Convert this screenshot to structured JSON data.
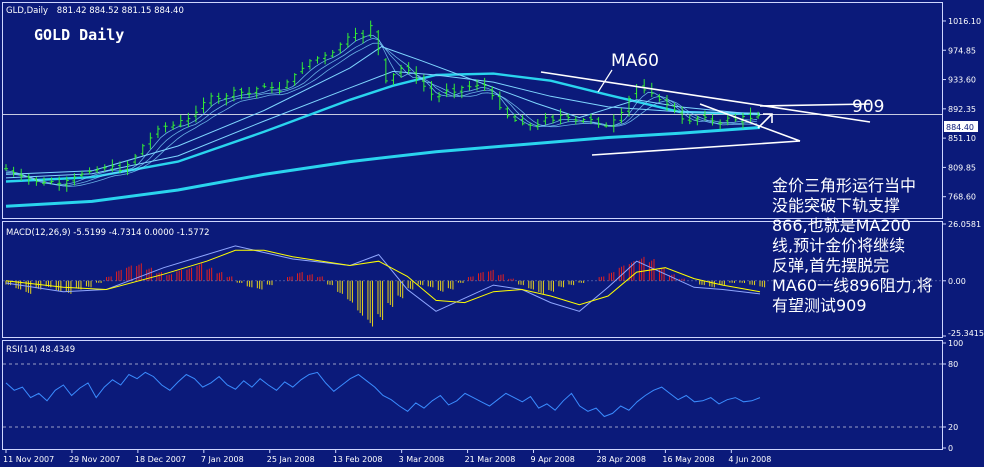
{
  "header": {
    "ticker": "GLD,Daily",
    "ohlc": "881.42 884.52 881.15 884.40",
    "big_title": "GOLD Daily",
    "annotation_ma60": "MA60",
    "annotation_909": "909"
  },
  "commentary": [
    "金价三角形运行当中",
    "没能突破下轨支撑",
    "866,也就是MA200",
    "线,预计金价将继续",
    "反弹,首先摆脱完",
    "MA60一线896阻力,将",
    "有望测试909"
  ],
  "colors": {
    "background": "#0b1a7a",
    "candles": "#33ee33",
    "ma_thin": "#7fd6ff",
    "ma_thick": "#2ad4ee",
    "macd_pos": "#e32020",
    "macd_neg": "#e6d21e",
    "signal": "#ffff00",
    "rsi": "#3a8cff",
    "text": "#ffffff"
  },
  "chart_data": [
    {
      "type": "candlestick",
      "panel": "price",
      "title": "GLD,Daily",
      "ohlc_label": "881.42 884.52 881.15 884.40",
      "last_price": "884.40",
      "ylim": [
        740,
        1040
      ],
      "y_ticks": [
        "1016.10",
        "974.85",
        "933.60",
        "892.35",
        "851.10",
        "809.85",
        "768.60"
      ],
      "x_ticks": [
        "11 Nov 2007",
        "29 Nov 2007",
        "18 Dec 2007",
        "7 Jan 2008",
        "25 Jan 2008",
        "13 Feb 2008",
        "3 Mar 2008",
        "21 Mar 2008",
        "9 Apr 2008",
        "28 Apr 2008",
        "16 May 2008",
        "4 Jun 2008"
      ],
      "close_path": [
        [
          0,
          808
        ],
        [
          8,
          800
        ],
        [
          18,
          792
        ],
        [
          24,
          788
        ],
        [
          32,
          790
        ],
        [
          38,
          787
        ],
        [
          46,
          795
        ],
        [
          52,
          800
        ],
        [
          60,
          805
        ],
        [
          66,
          808
        ],
        [
          74,
          812
        ],
        [
          80,
          805
        ],
        [
          88,
          820
        ],
        [
          96,
          842
        ],
        [
          104,
          858
        ],
        [
          108,
          870
        ],
        [
          114,
          866
        ],
        [
          122,
          876
        ],
        [
          130,
          880
        ],
        [
          136,
          898
        ],
        [
          144,
          912
        ],
        [
          150,
          905
        ],
        [
          160,
          920
        ],
        [
          168,
          912
        ],
        [
          176,
          922
        ],
        [
          184,
          925
        ],
        [
          190,
          915
        ],
        [
          198,
          935
        ],
        [
          206,
          948
        ],
        [
          212,
          960
        ],
        [
          220,
          966
        ],
        [
          228,
          972
        ],
        [
          234,
          985
        ],
        [
          242,
          1000
        ],
        [
          250,
          993
        ],
        [
          254,
          1012
        ],
        [
          260,
          975
        ],
        [
          264,
          930
        ],
        [
          270,
          940
        ],
        [
          276,
          950
        ],
        [
          282,
          946
        ],
        [
          288,
          930
        ],
        [
          294,
          920
        ],
        [
          300,
          905
        ],
        [
          306,
          920
        ],
        [
          312,
          915
        ],
        [
          320,
          925
        ],
        [
          326,
          922
        ],
        [
          332,
          930
        ],
        [
          338,
          915
        ],
        [
          344,
          895
        ],
        [
          350,
          882
        ],
        [
          356,
          875
        ],
        [
          362,
          870
        ],
        [
          370,
          868
        ],
        [
          376,
          880
        ],
        [
          382,
          876
        ],
        [
          388,
          885
        ],
        [
          394,
          878
        ],
        [
          400,
          875
        ],
        [
          406,
          880
        ],
        [
          412,
          872
        ],
        [
          418,
          867
        ],
        [
          426,
          880
        ],
        [
          432,
          893
        ],
        [
          438,
          925
        ],
        [
          444,
          920
        ],
        [
          450,
          915
        ],
        [
          456,
          905
        ],
        [
          462,
          898
        ],
        [
          468,
          888
        ],
        [
          474,
          872
        ],
        [
          480,
          878
        ],
        [
          486,
          882
        ],
        [
          492,
          876
        ],
        [
          498,
          872
        ],
        [
          504,
          880
        ],
        [
          510,
          876
        ],
        [
          516,
          884
        ],
        [
          520,
          878
        ],
        [
          526,
          884
        ]
      ],
      "series": [
        {
          "name": "MA200",
          "points": [
            [
              0,
              755
            ],
            [
              60,
              762
            ],
            [
              120,
              778
            ],
            [
              180,
              800
            ],
            [
              240,
              818
            ],
            [
              300,
              832
            ],
            [
              360,
              842
            ],
            [
              420,
              852
            ],
            [
              470,
              858
            ],
            [
              526,
              866
            ]
          ]
        },
        {
          "name": "MA60",
          "points": [
            [
              0,
              790
            ],
            [
              60,
              796
            ],
            [
              120,
              818
            ],
            [
              180,
              860
            ],
            [
              240,
              905
            ],
            [
              270,
              925
            ],
            [
              300,
              940
            ],
            [
              340,
              942
            ],
            [
              380,
              932
            ],
            [
              420,
              912
            ],
            [
              470,
              888
            ],
            [
              526,
              885
            ]
          ]
        },
        {
          "name": "MA40",
          "points": [
            [
              0,
              795
            ],
            [
              60,
              801
            ],
            [
              120,
              826
            ],
            [
              180,
              875
            ],
            [
              240,
              922
            ],
            [
              270,
              945
            ],
            [
              300,
              940
            ],
            [
              340,
              930
            ],
            [
              380,
              910
            ],
            [
              420,
              895
            ],
            [
              470,
              888
            ],
            [
              526,
              886
            ]
          ]
        },
        {
          "name": "MA20",
          "points": [
            [
              0,
              800
            ],
            [
              60,
              805
            ],
            [
              120,
              840
            ],
            [
              180,
              890
            ],
            [
              240,
              950
            ],
            [
              262,
              980
            ],
            [
              290,
              960
            ],
            [
              330,
              930
            ],
            [
              370,
              900
            ],
            [
              400,
              880
            ],
            [
              440,
              905
            ],
            [
              470,
              895
            ],
            [
              526,
              884
            ]
          ]
        }
      ],
      "trendlines": [
        {
          "label": "MA60",
          "from": [
            380,
            946
          ],
          "to": [
            620,
            902
          ]
        },
        {
          "label": "lower",
          "from": [
            420,
            854
          ],
          "to": [
            560,
            866
          ]
        },
        {
          "label": "909",
          "from": [
            560,
            902
          ],
          "to": [
            620,
            886
          ]
        }
      ]
    },
    {
      "type": "bar",
      "panel": "macd",
      "title": "MACD(12,26,9) -5.5199 -4.7314 0.0000 -1.5772",
      "ylim": [
        -25.3415,
        26.0581
      ],
      "y_ticks": [
        "26.0581",
        "0.00",
        "-25.3415"
      ],
      "histogram": [
        -2,
        -4,
        -6,
        -4,
        -3,
        -5,
        -6,
        -4,
        -3,
        -1,
        2,
        5,
        7,
        8,
        6,
        4,
        3,
        5,
        6,
        8,
        6,
        4,
        2,
        -1,
        -3,
        -4,
        -2,
        0,
        2,
        4,
        3,
        2,
        -2,
        -6,
        -10,
        -16,
        -21,
        -18,
        -12,
        -8,
        -4,
        -2,
        -3,
        -5,
        -4,
        -1,
        2,
        4,
        5,
        3,
        1,
        -2,
        -4,
        -6,
        -5,
        -3,
        -2,
        -1,
        0,
        2,
        4,
        7,
        9,
        11,
        10,
        6,
        3,
        1,
        0,
        -2,
        -3,
        -2,
        -1,
        -1,
        -2,
        -3
      ],
      "series": [
        {
          "name": "MACD",
          "points": [
            [
              0,
              -1
            ],
            [
              40,
              -5
            ],
            [
              70,
              -4
            ],
            [
              110,
              6
            ],
            [
              140,
              12
            ],
            [
              160,
              16
            ],
            [
              180,
              13
            ],
            [
              200,
              10
            ],
            [
              240,
              7
            ],
            [
              260,
              12
            ],
            [
              280,
              -4
            ],
            [
              300,
              -14
            ],
            [
              320,
              -8
            ],
            [
              340,
              -2
            ],
            [
              360,
              -4
            ],
            [
              380,
              -10
            ],
            [
              400,
              -14
            ],
            [
              420,
              -3
            ],
            [
              440,
              9
            ],
            [
              460,
              3
            ],
            [
              480,
              -3
            ],
            [
              500,
              -4
            ],
            [
              526,
              -6
            ]
          ]
        },
        {
          "name": "Signal",
          "points": [
            [
              0,
              0
            ],
            [
              40,
              -3
            ],
            [
              70,
              -4
            ],
            [
              110,
              3
            ],
            [
              140,
              9
            ],
            [
              160,
              14
            ],
            [
              180,
              14
            ],
            [
              200,
              11
            ],
            [
              240,
              7
            ],
            [
              260,
              9
            ],
            [
              280,
              2
            ],
            [
              300,
              -9
            ],
            [
              320,
              -10
            ],
            [
              340,
              -5
            ],
            [
              360,
              -4
            ],
            [
              380,
              -7
            ],
            [
              400,
              -11
            ],
            [
              420,
              -7
            ],
            [
              440,
              4
            ],
            [
              460,
              6
            ],
            [
              480,
              1
            ],
            [
              500,
              -2
            ],
            [
              526,
              -5
            ]
          ]
        }
      ]
    },
    {
      "type": "line",
      "panel": "rsi",
      "title": "RSI(14) 48.4349",
      "ylim": [
        0,
        100
      ],
      "y_ticks": [
        "100",
        "80",
        "20",
        "0"
      ],
      "values": [
        62,
        55,
        58,
        48,
        52,
        45,
        55,
        60,
        50,
        57,
        62,
        48,
        58,
        65,
        60,
        70,
        66,
        72,
        68,
        60,
        55,
        63,
        70,
        66,
        58,
        62,
        68,
        60,
        56,
        64,
        58,
        66,
        60,
        55,
        63,
        58,
        65,
        70,
        72,
        62,
        54,
        60,
        66,
        70,
        64,
        58,
        50,
        46,
        40,
        35,
        43,
        38,
        45,
        50,
        41,
        45,
        52,
        48,
        44,
        40,
        46,
        52,
        48,
        44,
        49,
        38,
        42,
        36,
        45,
        52,
        40,
        35,
        38,
        30,
        33,
        40,
        36,
        44,
        50,
        55,
        58,
        52,
        46,
        50,
        44,
        45,
        48,
        42,
        46,
        48,
        44,
        45,
        48
      ]
    }
  ]
}
